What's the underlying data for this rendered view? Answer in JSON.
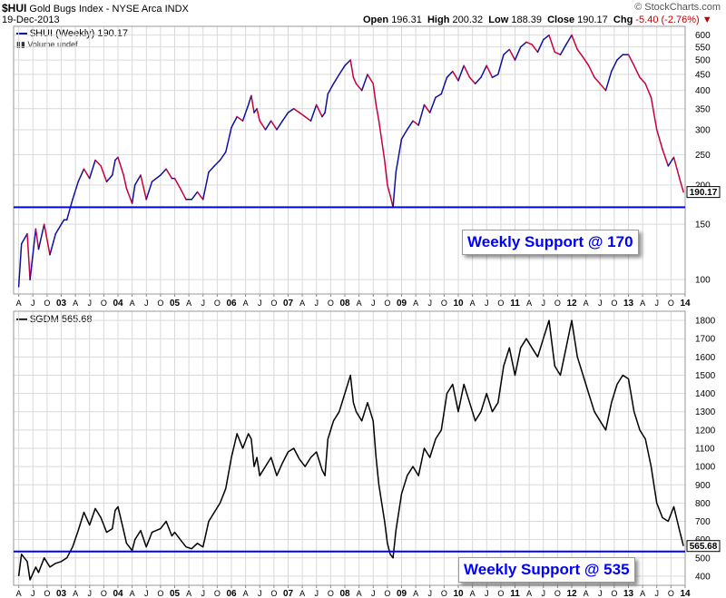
{
  "header": {
    "symbol": "$HUI",
    "name": "Gold Bugs Index - NYSE Arca",
    "exchange": "INDX",
    "date": "19-Dec-2013",
    "brand": "© StockCharts.com",
    "open_label": "Open",
    "open": "196.31",
    "high_label": "High",
    "high": "200.32",
    "low_label": "Low",
    "low": "188.39",
    "close_label": "Close",
    "close": "190.17",
    "chg_label": "Chg",
    "chg": "-5.40 (-2.76%)"
  },
  "colors": {
    "up": "#1010a0",
    "down": "#c8003c",
    "support": "#0000ff",
    "gdm": "#000000",
    "grid": "#d9d9d9"
  },
  "x_axis": {
    "labels": [
      "A",
      "J",
      "O",
      "03",
      "A",
      "J",
      "O",
      "04",
      "A",
      "J",
      "O",
      "05",
      "A",
      "J",
      "O",
      "06",
      "A",
      "J",
      "O",
      "07",
      "A",
      "J",
      "O",
      "08",
      "A",
      "J",
      "O",
      "09",
      "A",
      "J",
      "O",
      "10",
      "A",
      "J",
      "O",
      "11",
      "A",
      "J",
      "O",
      "12",
      "A",
      "J",
      "O",
      "13",
      "A",
      "J",
      "O",
      "14"
    ],
    "bold_labels": [
      "03",
      "04",
      "05",
      "06",
      "07",
      "08",
      "09",
      "10",
      "11",
      "12",
      "13",
      "14"
    ]
  },
  "chart_data": [
    {
      "type": "line",
      "legend": "$HUI (Weekly) 190.17",
      "volume_note": "Volume undef",
      "scale": "log",
      "ylim": [
        90,
        640
      ],
      "yticks": [
        100,
        150,
        200,
        250,
        300,
        350,
        400,
        450,
        500,
        550,
        600
      ],
      "last_value": "190.17",
      "support_value": 170,
      "support_label": "Weekly Support @ 170",
      "x": [
        2002.25,
        2002.3,
        2002.4,
        2002.45,
        2002.55,
        2002.6,
        2002.7,
        2002.8,
        2002.9,
        2003.0,
        2003.05,
        2003.1,
        2003.2,
        2003.3,
        2003.4,
        2003.5,
        2003.6,
        2003.7,
        2003.8,
        2003.9,
        2003.95,
        2004.0,
        2004.1,
        2004.15,
        2004.25,
        2004.3,
        2004.4,
        2004.5,
        2004.6,
        2004.75,
        2004.85,
        2004.95,
        2005.0,
        2005.1,
        2005.2,
        2005.3,
        2005.4,
        2005.5,
        2005.6,
        2005.7,
        2005.8,
        2005.9,
        2006.0,
        2006.1,
        2006.2,
        2006.3,
        2006.35,
        2006.4,
        2006.45,
        2006.5,
        2006.6,
        2006.7,
        2006.8,
        2006.9,
        2007.0,
        2007.1,
        2007.2,
        2007.3,
        2007.4,
        2007.5,
        2007.6,
        2007.65,
        2007.7,
        2007.8,
        2007.9,
        2008.0,
        2008.1,
        2008.15,
        2008.2,
        2008.3,
        2008.4,
        2008.5,
        2008.55,
        2008.6,
        2008.7,
        2008.75,
        2008.8,
        2008.85,
        2008.9,
        2009.0,
        2009.1,
        2009.2,
        2009.3,
        2009.4,
        2009.5,
        2009.6,
        2009.7,
        2009.8,
        2009.9,
        2010.0,
        2010.1,
        2010.2,
        2010.3,
        2010.4,
        2010.5,
        2010.6,
        2010.7,
        2010.8,
        2010.9,
        2011.0,
        2011.1,
        2011.2,
        2011.3,
        2011.4,
        2011.5,
        2011.6,
        2011.7,
        2011.8,
        2011.9,
        2012.0,
        2012.1,
        2012.2,
        2012.3,
        2012.4,
        2012.5,
        2012.6,
        2012.7,
        2012.8,
        2012.9,
        2013.0,
        2013.1,
        2013.2,
        2013.3,
        2013.4,
        2013.5,
        2013.6,
        2013.7,
        2013.8,
        2013.9,
        2013.97
      ],
      "y": [
        95,
        130,
        140,
        100,
        145,
        125,
        150,
        120,
        140,
        150,
        155,
        155,
        180,
        205,
        225,
        210,
        240,
        230,
        205,
        215,
        240,
        245,
        215,
        195,
        175,
        200,
        215,
        180,
        205,
        215,
        225,
        210,
        210,
        195,
        180,
        180,
        190,
        180,
        220,
        230,
        240,
        255,
        305,
        330,
        320,
        360,
        385,
        340,
        350,
        320,
        300,
        320,
        300,
        320,
        340,
        350,
        340,
        330,
        320,
        360,
        330,
        340,
        390,
        420,
        450,
        480,
        500,
        440,
        420,
        400,
        450,
        420,
        360,
        320,
        240,
        200,
        185,
        170,
        220,
        280,
        300,
        320,
        310,
        360,
        340,
        380,
        390,
        440,
        460,
        430,
        480,
        440,
        420,
        440,
        480,
        440,
        450,
        520,
        540,
        500,
        550,
        570,
        560,
        530,
        580,
        600,
        530,
        520,
        560,
        600,
        540,
        510,
        480,
        440,
        420,
        400,
        460,
        500,
        520,
        520,
        480,
        440,
        420,
        380,
        300,
        260,
        230,
        245,
        210,
        190
      ]
    },
    {
      "type": "line",
      "legend": "$GDM 565.68",
      "ylim": [
        350,
        1850
      ],
      "yticks": [
        400,
        500,
        600,
        700,
        800,
        900,
        1000,
        1100,
        1200,
        1300,
        1400,
        1500,
        1600,
        1700,
        1800
      ],
      "last_value": "565.68",
      "support_value": 535,
      "support_label": "Weekly Support @ 535",
      "x": [
        2002.25,
        2002.3,
        2002.4,
        2002.45,
        2002.55,
        2002.6,
        2002.7,
        2002.8,
        2002.9,
        2003.0,
        2003.05,
        2003.1,
        2003.2,
        2003.3,
        2003.4,
        2003.5,
        2003.6,
        2003.7,
        2003.8,
        2003.9,
        2003.95,
        2004.0,
        2004.1,
        2004.15,
        2004.25,
        2004.3,
        2004.4,
        2004.5,
        2004.6,
        2004.75,
        2004.85,
        2004.95,
        2005.0,
        2005.1,
        2005.2,
        2005.3,
        2005.4,
        2005.5,
        2005.6,
        2005.7,
        2005.8,
        2005.9,
        2006.0,
        2006.1,
        2006.2,
        2006.3,
        2006.35,
        2006.4,
        2006.45,
        2006.5,
        2006.6,
        2006.7,
        2006.8,
        2006.9,
        2007.0,
        2007.1,
        2007.2,
        2007.3,
        2007.4,
        2007.5,
        2007.6,
        2007.65,
        2007.7,
        2007.8,
        2007.9,
        2008.0,
        2008.1,
        2008.15,
        2008.2,
        2008.3,
        2008.4,
        2008.5,
        2008.55,
        2008.6,
        2008.7,
        2008.75,
        2008.8,
        2008.85,
        2008.9,
        2009.0,
        2009.1,
        2009.2,
        2009.3,
        2009.4,
        2009.5,
        2009.6,
        2009.7,
        2009.8,
        2009.9,
        2010.0,
        2010.1,
        2010.2,
        2010.3,
        2010.4,
        2010.5,
        2010.6,
        2010.7,
        2010.8,
        2010.9,
        2011.0,
        2011.1,
        2011.2,
        2011.3,
        2011.4,
        2011.5,
        2011.6,
        2011.7,
        2011.8,
        2011.9,
        2012.0,
        2012.1,
        2012.2,
        2012.3,
        2012.4,
        2012.5,
        2012.6,
        2012.7,
        2012.8,
        2012.9,
        2013.0,
        2013.1,
        2013.2,
        2013.3,
        2013.4,
        2013.5,
        2013.6,
        2013.7,
        2013.8,
        2013.9,
        2013.97
      ],
      "y": [
        400,
        520,
        480,
        380,
        450,
        420,
        500,
        450,
        470,
        480,
        490,
        500,
        560,
        650,
        750,
        680,
        770,
        720,
        640,
        660,
        760,
        780,
        650,
        580,
        540,
        600,
        650,
        560,
        640,
        660,
        700,
        620,
        640,
        600,
        560,
        550,
        580,
        560,
        700,
        750,
        800,
        880,
        1050,
        1180,
        1100,
        1180,
        1150,
        1000,
        1050,
        950,
        1000,
        1050,
        950,
        1020,
        1080,
        1100,
        1040,
        1000,
        1050,
        1080,
        980,
        950,
        1150,
        1250,
        1300,
        1400,
        1500,
        1350,
        1300,
        1250,
        1350,
        1250,
        1050,
        900,
        700,
        580,
        520,
        500,
        650,
        850,
        950,
        1000,
        950,
        1100,
        1050,
        1150,
        1200,
        1400,
        1450,
        1300,
        1450,
        1350,
        1250,
        1300,
        1400,
        1300,
        1350,
        1550,
        1650,
        1500,
        1650,
        1700,
        1650,
        1600,
        1700,
        1800,
        1550,
        1500,
        1650,
        1800,
        1600,
        1500,
        1400,
        1300,
        1250,
        1200,
        1350,
        1450,
        1500,
        1480,
        1300,
        1200,
        1150,
        1000,
        800,
        720,
        700,
        780,
        650,
        565
      ]
    }
  ]
}
